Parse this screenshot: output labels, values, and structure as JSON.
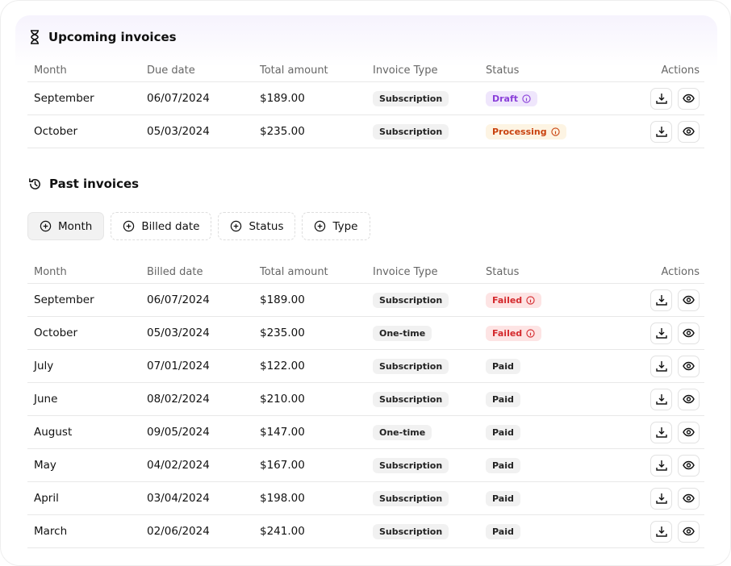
{
  "upcoming": {
    "title": "Upcoming invoices",
    "columns": [
      "Month",
      "Due date",
      "Total amount",
      "Invoice Type",
      "Status",
      "Actions"
    ],
    "rows": [
      [
        "September",
        "06/07/2024",
        "$189.00",
        "Subscription",
        "Draft"
      ],
      [
        "October",
        "05/03/2024",
        "$235.00",
        "Subscription",
        "Processing"
      ]
    ]
  },
  "past": {
    "title": "Past invoices",
    "filters": [
      "Month",
      "Billed date",
      "Status",
      "Type"
    ],
    "columns": [
      "Month",
      "Billed date",
      "Total amount",
      "Invoice Type",
      "Status",
      "Actions"
    ],
    "rows": [
      [
        "September",
        "06/07/2024",
        "$189.00",
        "Subscription",
        "Failed"
      ],
      [
        "October",
        "05/03/2024",
        "$235.00",
        "One-time",
        "Failed"
      ],
      [
        "July",
        "07/01/2024",
        "$122.00",
        "Subscription",
        "Paid"
      ],
      [
        "June",
        "08/02/2024",
        "$210.00",
        "Subscription",
        "Paid"
      ],
      [
        "August",
        "09/05/2024",
        "$147.00",
        "One-time",
        "Paid"
      ],
      [
        "May",
        "04/02/2024",
        "$167.00",
        "Subscription",
        "Paid"
      ],
      [
        "April",
        "03/04/2024",
        "$198.00",
        "Subscription",
        "Paid"
      ],
      [
        "March",
        "02/06/2024",
        "$241.00",
        "Subscription",
        "Paid"
      ]
    ]
  }
}
